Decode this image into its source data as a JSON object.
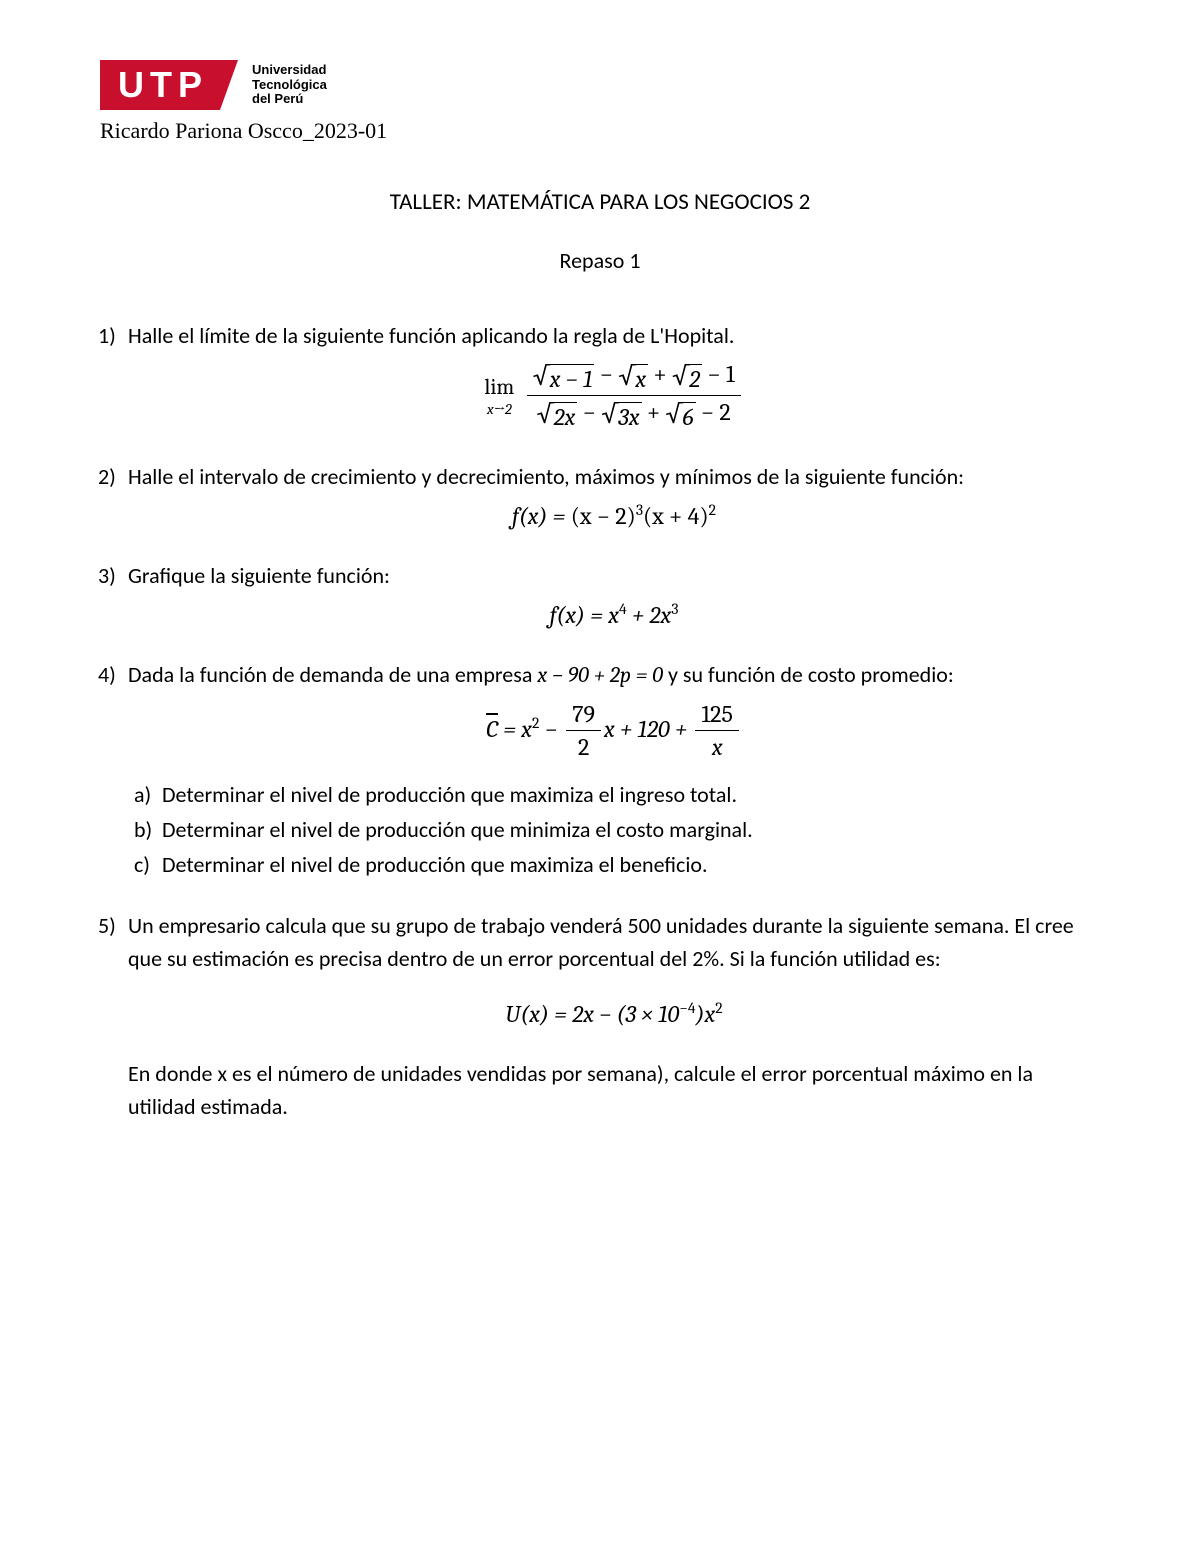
{
  "logo": {
    "letters": "UTP",
    "uni_line1": "Universidad",
    "uni_line2": "Tecnológica",
    "uni_line3": "del Perú",
    "bg_color": "#c8102e",
    "fg_color": "#ffffff"
  },
  "author_line": "Ricardo Pariona Oscco_2023-01",
  "title": "TALLER: MATEMÁTICA PARA LOS NEGOCIOS 2",
  "subtitle": "Repaso 1",
  "q1": {
    "num": "1)",
    "text": "Halle el límite de la siguiente función aplicando la regla de L'Hopital.",
    "lim_label": "lim",
    "lim_sub": "x→2",
    "numerator": {
      "sqrt1": "x − 1",
      "op1": "−",
      "sqrt2": "x",
      "op2": "+",
      "sqrt3": "2",
      "tail": "− 1"
    },
    "denominator": {
      "sqrt1": "2x",
      "op1": "−",
      "sqrt2": "3x",
      "op2": "+",
      "sqrt3": "6",
      "tail": "− 2"
    }
  },
  "q2": {
    "num": "2)",
    "text": "Halle el intervalo de crecimiento y decrecimiento, máximos y mínimos de la siguiente función:",
    "formula_lhs": "f(x) = ",
    "formula_rhs_a": "(x − 2)",
    "formula_exp_a": "3",
    "formula_rhs_b": "(x + 4)",
    "formula_exp_b": "2"
  },
  "q3": {
    "num": "3)",
    "text": "Grafique la siguiente función:",
    "formula_lhs": "f(x) = x",
    "exp1": "4",
    "mid": " + 2x",
    "exp2": "3"
  },
  "q4": {
    "num": "4)",
    "text_a": "Dada la función de demanda de una empresa ",
    "inline_eq": "x − 90 + 2p = 0",
    "text_b": " y su función de costo promedio:",
    "formula": {
      "cbar": "C",
      "eq": " = x",
      "exp1": "2",
      "minus": " − ",
      "frac1_num": "79",
      "frac1_den": "2",
      "aftfrac1": "x + 120 + ",
      "frac2_num": "125",
      "frac2_den": "x"
    },
    "a": {
      "letter": "a)",
      "text": "Determinar el nivel de producción que maximiza el ingreso total."
    },
    "b": {
      "letter": "b)",
      "text": "Determinar el nivel de producción que minimiza el costo marginal."
    },
    "c": {
      "letter": "c)",
      "text": "Determinar el nivel de producción que maximiza el beneficio."
    }
  },
  "q5": {
    "num": "5)",
    "text": "Un empresario calcula que su grupo de trabajo venderá 500 unidades durante la siguiente semana. El cree que su estimación es precisa dentro de un error porcentual del 2%. Si la función utilidad es:",
    "formula": {
      "lhs": "U(x) = 2x − (3 × 10",
      "sup": "−4",
      "rhs": ")x",
      "exp": "2"
    },
    "tail": "En donde x es el número de unidades vendidas por semana), calcule el error porcentual máximo en la utilidad estimada."
  }
}
